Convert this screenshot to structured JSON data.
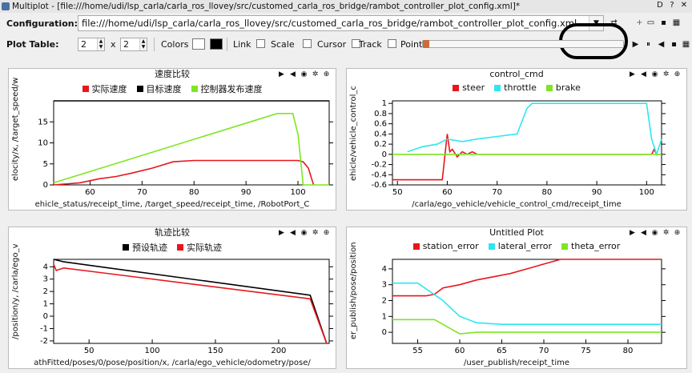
{
  "window": {
    "title": "Multiplot - [file:///home/udi/lsp_carla/carla_ros_llovey/src/customed_carla_ros_bridge/rambot_controller_plot_config.xml]*",
    "help_label": "D",
    "help_icon": "help-icon"
  },
  "config": {
    "label": "Configuration:",
    "path": "file:///home/udi/lsp_carla/carla_ros_llovey/src/customed_carla_ros_bridge/rambot_controller_plot_config.xml"
  },
  "plot_table": {
    "label": "Plot Table:",
    "rows": "2",
    "x": "x",
    "cols": "2",
    "colors_label": "Colors",
    "color_bg": "#ffffff",
    "color_fg": "#000000",
    "link_label": "Link",
    "scale_label": "Scale",
    "cursor_label": "Cursor",
    "track_label": "Track",
    "points_label": "Points"
  },
  "panels": [
    {
      "title": "速度比较",
      "legend": [
        {
          "name": "实际速度",
          "color": "#e8161b"
        },
        {
          "name": "目标速度",
          "color": "#000000"
        },
        {
          "name": "控制器发布速度",
          "color": "#7ee622"
        }
      ],
      "ylabel": "elocity/x, /target_speed/w",
      "xlabel": "ehicle_status/receipt_time, /target_speed/receipt_time, /RobotPort_C",
      "chart_data": {
        "type": "line",
        "xlim": [
          53,
          106
        ],
        "ylim": [
          0,
          20
        ],
        "xticks": [
          60,
          70,
          80,
          90,
          100
        ],
        "yticks": [
          0,
          5,
          10,
          15
        ],
        "series": [
          {
            "name": "实际速度",
            "color": "#e8161b",
            "x": [
              53,
              58,
              62,
              65,
              68,
              72,
              76,
              80,
              88,
              95,
              98,
              100,
              101,
              102,
              103
            ],
            "y": [
              0,
              0.5,
              1.5,
              2,
              2.8,
              4,
              5.5,
              5.8,
              5.8,
              5.8,
              5.8,
              5.8,
              5.5,
              4,
              0
            ]
          },
          {
            "name": "目标速度",
            "color": "#000000",
            "x": [
              53,
              106
            ],
            "y": [
              20,
              20
            ]
          },
          {
            "name": "控制器发布速度",
            "color": "#7ee622",
            "x": [
              53,
              96,
              99,
              100,
              101,
              106
            ],
            "y": [
              0.5,
              17,
              17,
              12,
              0,
              0
            ]
          }
        ]
      }
    },
    {
      "title": "control_cmd",
      "legend": [
        {
          "name": "steer",
          "color": "#e8161b"
        },
        {
          "name": "throttle",
          "color": "#2ee6f0"
        },
        {
          "name": "brake",
          "color": "#7ee622"
        }
      ],
      "ylabel": "ehicle/vehicle_control_c",
      "xlabel": "/carla/ego_vehicle/vehicle_control_cmd/receipt_time",
      "chart_data": {
        "type": "line",
        "xlim": [
          49,
          103
        ],
        "ylim": [
          -0.6,
          1.05
        ],
        "xticks": [
          50,
          60,
          70,
          80,
          90,
          100
        ],
        "yticks": [
          -0.6,
          -0.4,
          -0.2,
          0,
          0.2,
          0.4,
          0.6,
          0.8,
          1
        ],
        "series": [
          {
            "name": "steer",
            "color": "#e8161b",
            "x": [
              49,
              59,
              60,
              60.5,
              61,
              62,
              63,
              64,
              65,
              66,
              70,
              101,
              101.5,
              102,
              103
            ],
            "y": [
              -0.5,
              -0.5,
              0.4,
              0.05,
              0.1,
              -0.05,
              0.05,
              0,
              0.05,
              0,
              0,
              0,
              0.1,
              0,
              0
            ]
          },
          {
            "name": "throttle",
            "color": "#2ee6f0",
            "x": [
              52,
              55,
              58,
              60,
              63,
              66,
              70,
              74,
              76,
              77,
              100,
              101,
              102,
              103
            ],
            "y": [
              0.05,
              0.15,
              0.2,
              0.3,
              0.25,
              0.3,
              0.35,
              0.4,
              0.9,
              1,
              1,
              0.3,
              0,
              0.3
            ]
          },
          {
            "name": "brake",
            "color": "#7ee622",
            "x": [
              49,
              103
            ],
            "y": [
              0,
              0
            ]
          }
        ]
      }
    },
    {
      "title": "轨迹比较",
      "legend": [
        {
          "name": "预设轨迹",
          "color": "#000000"
        },
        {
          "name": "实际轨迹",
          "color": "#e8161b"
        }
      ],
      "ylabel": "/position/y, /carla/ego_v",
      "xlabel": "athFitted/poses/0/pose/position/x, /carla/ego_vehicle/odometry/pose/",
      "chart_data": {
        "type": "line",
        "xlim": [
          22,
          240
        ],
        "ylim": [
          -2.2,
          4.6
        ],
        "xticks": [
          50,
          100,
          150,
          200
        ],
        "yticks": [
          -2,
          -1,
          0,
          1,
          2,
          3,
          4
        ],
        "series": [
          {
            "name": "预设轨迹",
            "color": "#000000",
            "x": [
              22,
              30,
              225,
              238
            ],
            "y": [
              4.6,
              4.4,
              1.7,
              -2.2
            ]
          },
          {
            "name": "实际轨迹",
            "color": "#e8161b",
            "x": [
              22,
              24,
              30,
              225,
              238
            ],
            "y": [
              4.2,
              3.7,
              3.9,
              1.4,
              -2.2
            ]
          }
        ]
      }
    },
    {
      "title": "Untitled Plot",
      "legend": [
        {
          "name": "station_error",
          "color": "#e8161b"
        },
        {
          "name": "lateral_error",
          "color": "#2ee6f0"
        },
        {
          "name": "theta_error",
          "color": "#7ee622"
        }
      ],
      "ylabel": "er_publish/pose/position",
      "xlabel": "/user_publish/receipt_time",
      "chart_data": {
        "type": "line",
        "xlim": [
          52,
          84
        ],
        "ylim": [
          -0.7,
          4.6
        ],
        "xticks": [
          55,
          60,
          65,
          70,
          75,
          80
        ],
        "yticks": [
          0,
          1,
          2,
          3,
          4
        ],
        "series": [
          {
            "name": "station_error",
            "color": "#e8161b",
            "x": [
              52,
              56,
              57,
              58,
              60,
              62,
              64,
              66,
              68,
              70,
              72,
              84
            ],
            "y": [
              2.3,
              2.3,
              2.4,
              2.8,
              3.0,
              3.3,
              3.5,
              3.7,
              4.0,
              4.3,
              4.6,
              4.6
            ]
          },
          {
            "name": "lateral_error",
            "color": "#2ee6f0",
            "x": [
              52,
              55,
              58,
              60,
              62,
              65,
              70,
              84
            ],
            "y": [
              3.1,
              3.1,
              2.0,
              1.0,
              0.6,
              0.5,
              0.5,
              0.5
            ]
          },
          {
            "name": "theta_error",
            "color": "#7ee622",
            "x": [
              52,
              57,
              59,
              60,
              62,
              84
            ],
            "y": [
              0.8,
              0.8,
              0.2,
              -0.1,
              0,
              0
            ]
          }
        ]
      }
    }
  ]
}
